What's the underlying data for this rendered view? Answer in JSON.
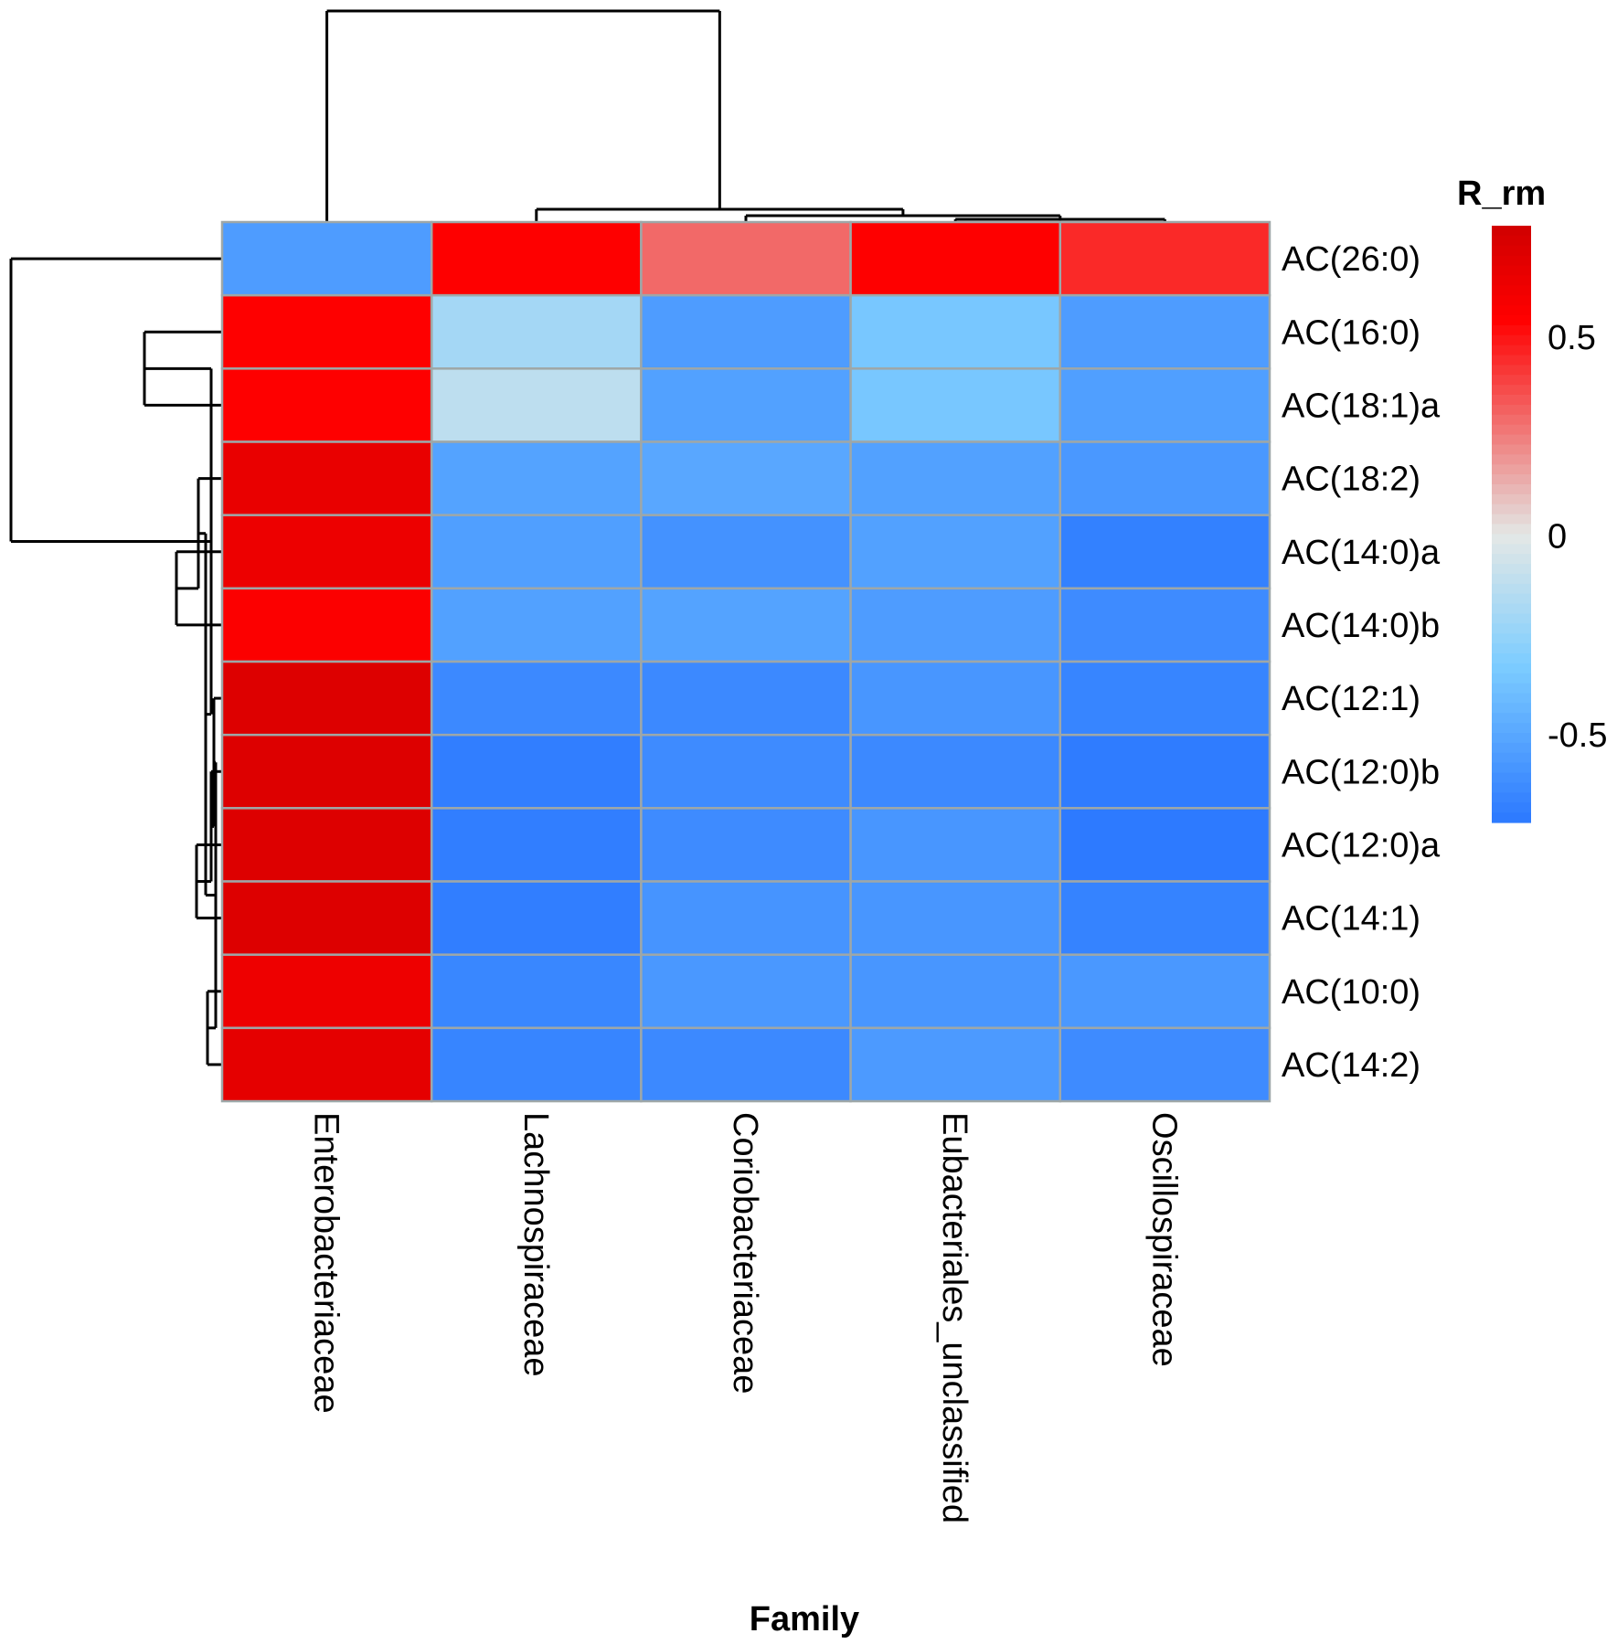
{
  "chart_data": {
    "type": "heatmap",
    "title": "",
    "xlabel": "Family",
    "ylabel": "",
    "legend": {
      "title": "R_rm",
      "placement": "right",
      "ticks": [
        0.5,
        0,
        -0.5
      ],
      "tick_labels": [
        "0.5",
        "0",
        "-0.5"
      ],
      "range": [
        -0.72,
        0.78
      ],
      "colors": {
        "low": "#2b78ff",
        "mid": "#e3e8e6",
        "high": "#d10000"
      }
    },
    "columns": [
      "Enterobacteriaceae",
      "Lachnospiraceae",
      "Coriobacteriaceae",
      "Eubacteriales_unclassified",
      "Oscillospiraceae"
    ],
    "rows": [
      "AC(26:0)",
      "AC(16:0)",
      "AC(18:1)a",
      "AC(18:2)",
      "AC(14:0)a",
      "AC(14:0)b",
      "AC(12:1)",
      "AC(12:0)b",
      "AC(12:0)a",
      "AC(14:1)",
      "AC(10:0)",
      "AC(14:2)"
    ],
    "values": [
      [
        -0.55,
        0.55,
        0.3,
        0.55,
        0.45
      ],
      [
        0.55,
        -0.2,
        -0.55,
        -0.35,
        -0.55
      ],
      [
        0.55,
        -0.12,
        -0.53,
        -0.35,
        -0.54
      ],
      [
        0.66,
        -0.52,
        -0.5,
        -0.53,
        -0.57
      ],
      [
        0.64,
        -0.54,
        -0.6,
        -0.53,
        -0.68
      ],
      [
        0.56,
        -0.53,
        -0.52,
        -0.55,
        -0.63
      ],
      [
        0.72,
        -0.64,
        -0.64,
        -0.58,
        -0.66
      ],
      [
        0.72,
        -0.69,
        -0.63,
        -0.64,
        -0.7
      ],
      [
        0.72,
        -0.69,
        -0.63,
        -0.58,
        -0.71
      ],
      [
        0.72,
        -0.69,
        -0.59,
        -0.58,
        -0.67
      ],
      [
        0.63,
        -0.65,
        -0.57,
        -0.58,
        -0.57
      ],
      [
        0.68,
        -0.66,
        -0.64,
        -0.56,
        -0.63
      ]
    ],
    "row_dendrogram": "(AC(26:0),((AC(16:0),AC(18:1)a),((AC(18:2),(AC(14:0)a,AC(14:0)b)),((AC(12:1),(AC(12:0)b,(AC(12:0)a,AC(14:1)))),(AC(10:0),AC(14:2))))))",
    "column_dendrogram": "(Enterobacteriaceae,(Lachnospiraceae,(Coriobacteriaceae,(Eubacteriales_unclassified,Oscillospiraceae))))"
  }
}
